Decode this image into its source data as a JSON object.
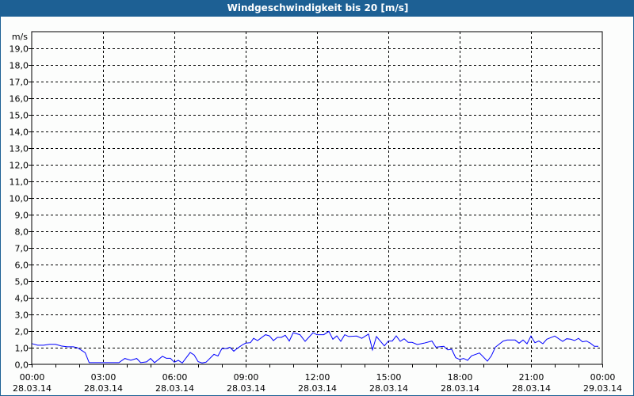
{
  "window": {
    "title": "Windgeschwindigkeit bis 20 [m/s]"
  },
  "chart_data": {
    "type": "line",
    "title": "Windgeschwindigkeit bis 20 [m/s]",
    "ylabel": "m/s",
    "ylim": [
      0,
      20
    ],
    "xlim": [
      "28.03.14 00:00",
      "29.03.14 00:00"
    ],
    "grid": true,
    "line_color": "#0000ff",
    "y_ticks": [
      "0,0",
      "1,0",
      "2,0",
      "3,0",
      "4,0",
      "5,0",
      "6,0",
      "7,0",
      "8,0",
      "9,0",
      "10,0",
      "11,0",
      "12,0",
      "13,0",
      "14,0",
      "15,0",
      "16,0",
      "17,0",
      "18,0",
      "19,0"
    ],
    "x_ticks": [
      {
        "time": "00:00",
        "date": "28.03.14"
      },
      {
        "time": "03:00",
        "date": "28.03.14"
      },
      {
        "time": "06:00",
        "date": "28.03.14"
      },
      {
        "time": "09:00",
        "date": "28.03.14"
      },
      {
        "time": "12:00",
        "date": "28.03.14"
      },
      {
        "time": "15:00",
        "date": "28.03.14"
      },
      {
        "time": "18:00",
        "date": "28.03.14"
      },
      {
        "time": "21:00",
        "date": "28.03.14"
      },
      {
        "time": "00:00",
        "date": "29.03.14"
      }
    ],
    "series": [
      {
        "x": [
          "00:00",
          "00:15",
          "00:30",
          "00:45",
          "01:00",
          "01:15",
          "01:30",
          "01:45",
          "01:55",
          "02:05",
          "02:15",
          "02:25",
          "03:00",
          "03:40",
          "03:55",
          "04:10",
          "04:25",
          "04:35",
          "04:50",
          "05:00",
          "05:10",
          "05:30",
          "05:40",
          "05:50",
          "06:00",
          "06:10",
          "06:20",
          "06:40",
          "06:50",
          "07:00",
          "07:10",
          "07:20",
          "07:40",
          "07:50",
          "08:00",
          "08:13",
          "08:20",
          "08:30",
          "08:40",
          "08:53",
          "09:00",
          "09:12",
          "09:20",
          "09:30",
          "09:50",
          "10:00",
          "10:10",
          "10:20",
          "10:30",
          "10:40",
          "10:50",
          "11:00",
          "11:17",
          "11:30",
          "11:50",
          "12:00",
          "12:17",
          "12:30",
          "12:40",
          "12:50",
          "13:00",
          "13:10",
          "13:20",
          "13:40",
          "13:53",
          "14:10",
          "14:20",
          "14:30",
          "14:50",
          "15:00",
          "15:10",
          "15:20",
          "15:30",
          "15:40",
          "15:50",
          "16:00",
          "16:13",
          "16:30",
          "16:50",
          "17:00",
          "17:20",
          "17:30",
          "17:40",
          "17:50",
          "18:00",
          "18:10",
          "18:20",
          "18:30",
          "18:50",
          "19:10",
          "19:20",
          "19:30",
          "19:50",
          "20:00",
          "20:20",
          "20:30",
          "20:40",
          "20:50",
          "21:00",
          "21:10",
          "21:20",
          "21:30",
          "21:40",
          "22:00",
          "22:20",
          "22:30",
          "22:40",
          "22:50",
          "23:00",
          "23:10",
          "23:20",
          "23:30",
          "23:40",
          "23:50"
        ],
        "values": [
          1.25,
          1.15,
          1.15,
          1.2,
          1.2,
          1.1,
          1.05,
          1.05,
          1.0,
          0.85,
          0.7,
          0.1,
          0.1,
          0.1,
          0.35,
          0.25,
          0.35,
          0.1,
          0.15,
          0.35,
          0.1,
          0.48,
          0.36,
          0.36,
          0.13,
          0.24,
          0.08,
          0.71,
          0.56,
          0.16,
          0.08,
          0.13,
          0.6,
          0.5,
          0.95,
          0.95,
          1.03,
          0.79,
          0.98,
          1.19,
          1.27,
          1.3,
          1.56,
          1.43,
          1.78,
          1.71,
          1.43,
          1.62,
          1.62,
          1.75,
          1.4,
          1.9,
          1.78,
          1.38,
          1.9,
          1.78,
          1.78,
          1.98,
          1.51,
          1.71,
          1.38,
          1.78,
          1.67,
          1.7,
          1.56,
          1.82,
          0.87,
          1.67,
          1.11,
          1.4,
          1.4,
          1.71,
          1.38,
          1.54,
          1.32,
          1.32,
          1.19,
          1.27,
          1.4,
          1.03,
          1.08,
          0.87,
          0.9,
          0.4,
          0.29,
          0.35,
          0.24,
          0.51,
          0.68,
          0.19,
          0.51,
          1.03,
          1.4,
          1.46,
          1.46,
          1.27,
          1.46,
          1.24,
          1.7,
          1.3,
          1.4,
          1.24,
          1.51,
          1.7,
          1.38,
          1.54,
          1.51,
          1.43,
          1.56,
          1.35,
          1.4,
          1.27,
          1.08,
          1.08
        ]
      }
    ]
  }
}
